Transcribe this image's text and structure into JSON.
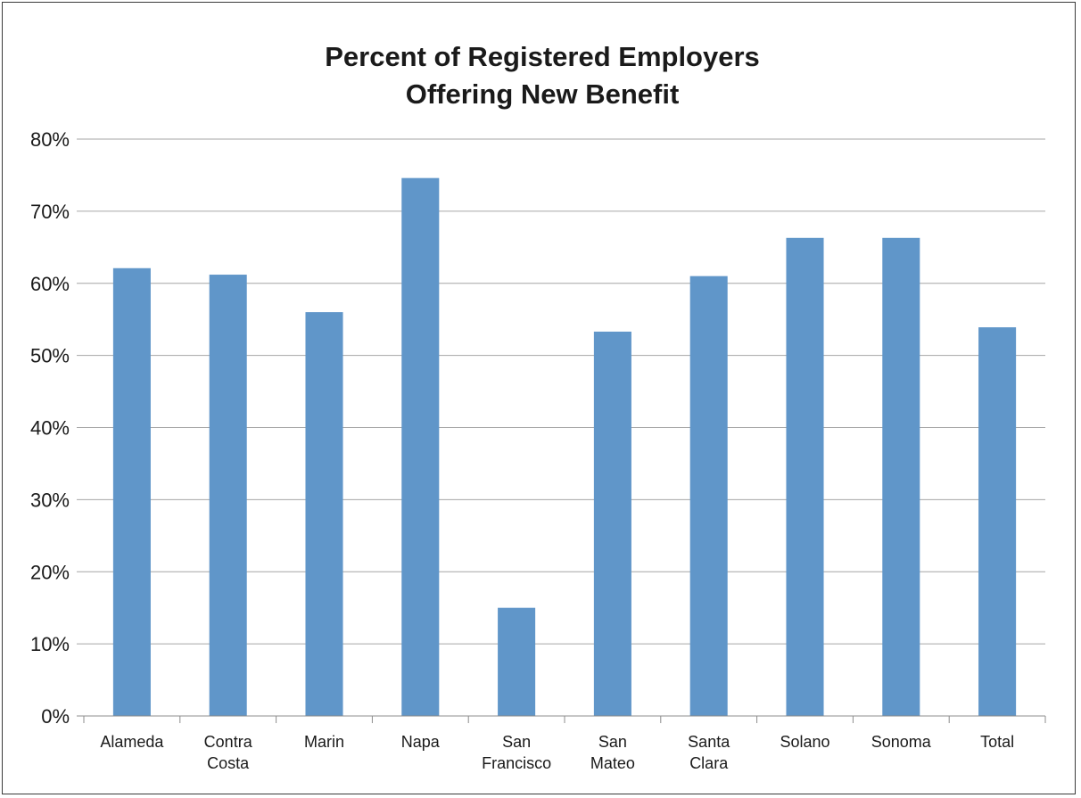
{
  "chart_data": {
    "type": "bar",
    "title_lines": [
      "Percent of Registered Employers",
      "Offering New Benefit"
    ],
    "categories": [
      [
        "Alameda"
      ],
      [
        "Contra",
        "Costa"
      ],
      [
        "Marin"
      ],
      [
        "Napa"
      ],
      [
        "San",
        "Francisco"
      ],
      [
        "San",
        "Mateo"
      ],
      [
        "Santa",
        "Clara"
      ],
      [
        "Solano"
      ],
      [
        "Sonoma"
      ],
      [
        "Total"
      ]
    ],
    "values": [
      62.1,
      61.2,
      56.0,
      74.6,
      15.0,
      53.3,
      61.0,
      66.3,
      66.3,
      53.9
    ],
    "ylim": [
      0,
      80
    ],
    "yticks": [
      0,
      10,
      20,
      30,
      40,
      50,
      60,
      70,
      80
    ],
    "ytick_suffix": "%",
    "grid": true,
    "legend": "none",
    "bar_color": "#6096c9"
  }
}
